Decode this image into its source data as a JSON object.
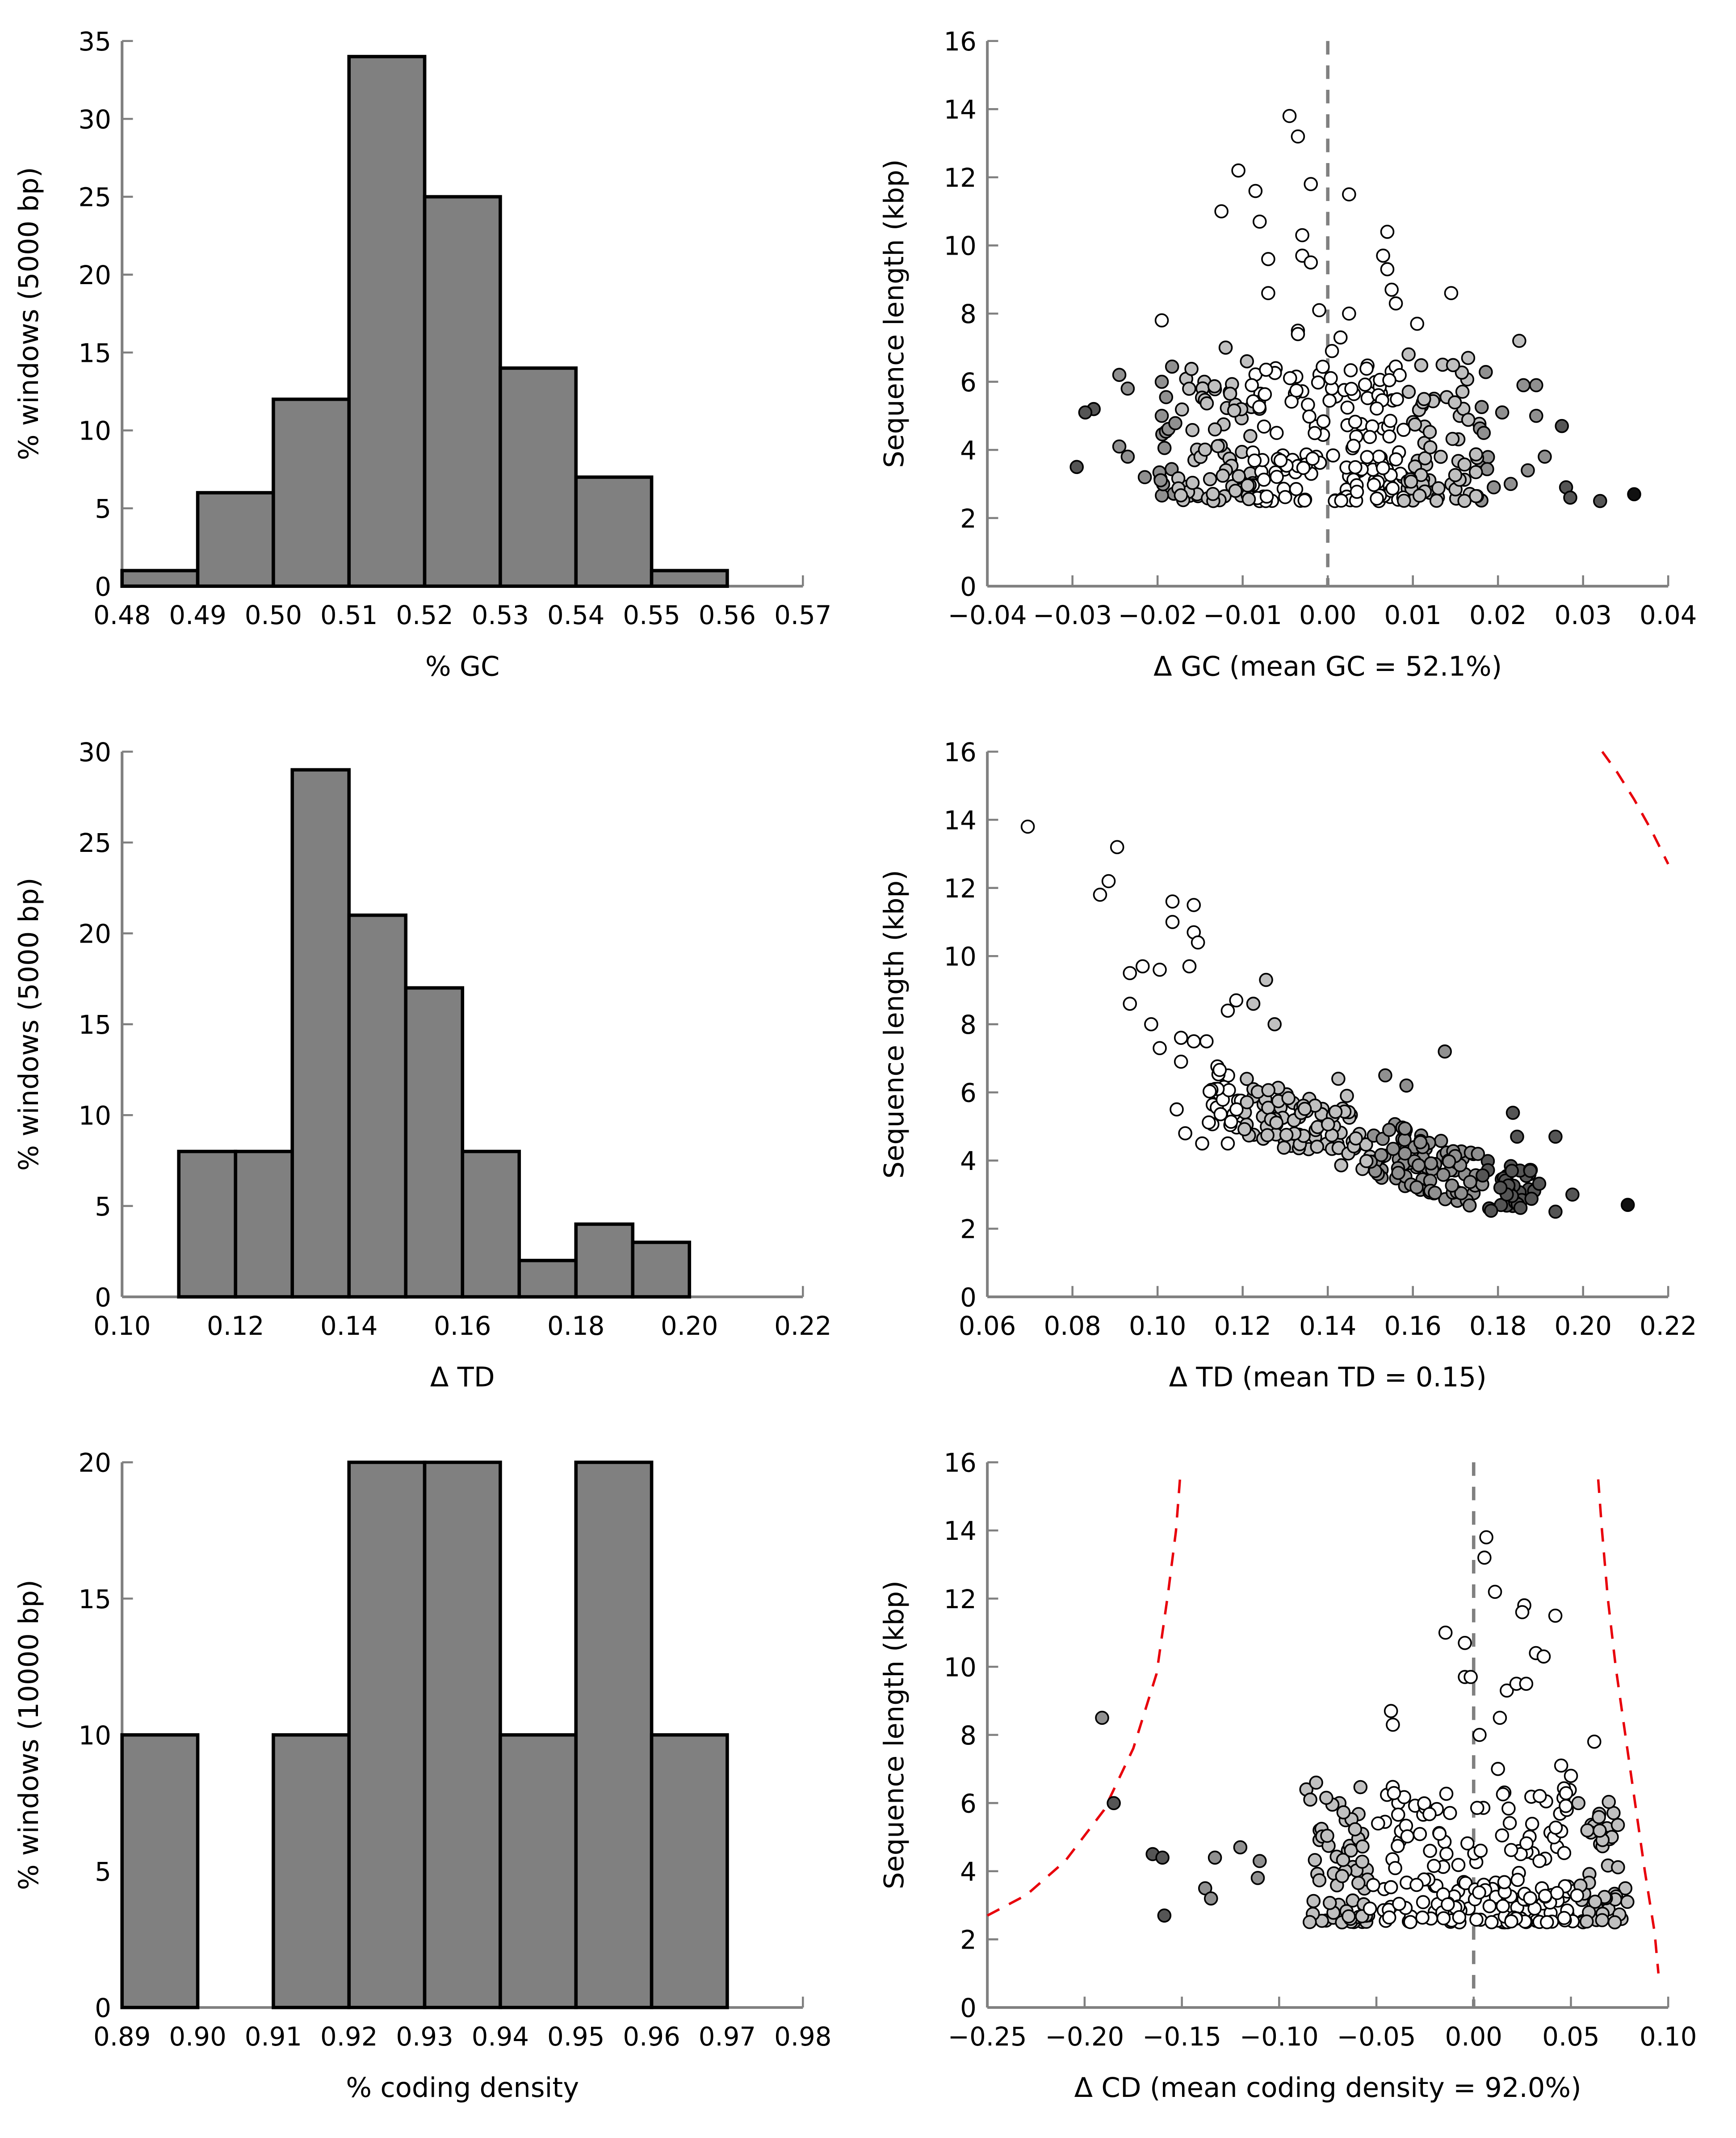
{
  "colors": {
    "bar_fill": "#808080",
    "bar_stroke": "#000000",
    "axis": "#808080",
    "refline": "#808080",
    "threshold": "#e8000b",
    "point_white": "#ffffff",
    "point_light": "#c0c0c0",
    "point_mid": "#909090",
    "point_dark": "#555555",
    "point_black": "#111111"
  },
  "chart_data": [
    {
      "id": "hist_gc",
      "type": "bar",
      "xlabel": "% GC",
      "ylabel": "% windows (5000 bp)",
      "xlim": [
        0.48,
        0.57
      ],
      "ylim": [
        0,
        35
      ],
      "xticks": [
        "0.48",
        "0.49",
        "0.50",
        "0.51",
        "0.52",
        "0.53",
        "0.54",
        "0.55",
        "0.56",
        "0.57"
      ],
      "yticks": [
        "0",
        "5",
        "10",
        "15",
        "20",
        "25",
        "30",
        "35"
      ],
      "bin_width": 0.01,
      "bins": [
        0.48,
        0.49,
        0.5,
        0.51,
        0.52,
        0.53,
        0.54,
        0.55
      ],
      "values": [
        1,
        6,
        12,
        34,
        25,
        14,
        7,
        1
      ]
    },
    {
      "id": "scatter_gc",
      "type": "scatter",
      "xlabel": "Δ GC (mean GC = 52.1%)",
      "ylabel": "Sequence length (kbp)",
      "xlim": [
        -0.04,
        0.04
      ],
      "ylim": [
        0,
        16
      ],
      "xticks": [
        "−0.04",
        "−0.03",
        "−0.02",
        "−0.01",
        "0.00",
        "0.01",
        "0.02",
        "0.03",
        "0.04"
      ],
      "yticks": [
        "0",
        "2",
        "4",
        "6",
        "8",
        "10",
        "12",
        "14",
        "16"
      ],
      "refline_x": 0.0,
      "shade_scale": 0.025,
      "points_labeled": [
        [
          -0.0045,
          13.8
        ],
        [
          -0.0035,
          13.2
        ],
        [
          -0.0105,
          12.2
        ],
        [
          -0.0085,
          11.6
        ],
        [
          -0.002,
          11.8
        ],
        [
          0.0025,
          11.5
        ],
        [
          -0.0125,
          11.0
        ],
        [
          -0.008,
          10.7
        ],
        [
          -0.003,
          10.3
        ],
        [
          0.007,
          10.4
        ],
        [
          -0.007,
          9.6
        ],
        [
          -0.003,
          9.7
        ],
        [
          -0.002,
          9.5
        ],
        [
          0.0065,
          9.7
        ],
        [
          0.007,
          9.3
        ],
        [
          -0.007,
          8.6
        ],
        [
          0.0075,
          8.7
        ],
        [
          0.008,
          8.3
        ],
        [
          0.0145,
          8.6
        ],
        [
          -0.0195,
          7.8
        ],
        [
          -0.001,
          8.1
        ],
        [
          0.0025,
          8.0
        ],
        [
          0.0105,
          7.7
        ],
        [
          -0.0035,
          7.5
        ],
        [
          0.0015,
          7.3
        ],
        [
          0.0225,
          7.2
        ],
        [
          -0.012,
          7.0
        ],
        [
          -0.0035,
          7.4
        ],
        [
          0.0005,
          6.9
        ],
        [
          -0.0095,
          6.6
        ],
        [
          0.0095,
          6.8
        ],
        [
          0.0165,
          6.7
        ],
        [
          0.0135,
          6.5
        ],
        [
          -0.0245,
          6.2
        ],
        [
          -0.0235,
          5.8
        ],
        [
          -0.0275,
          5.2
        ],
        [
          -0.0285,
          5.1
        ],
        [
          -0.0195,
          6.0
        ],
        [
          -0.0145,
          6.0
        ],
        [
          0.0075,
          6.3
        ],
        [
          0.023,
          5.9
        ],
        [
          0.0245,
          5.9
        ],
        [
          -0.0195,
          5.0
        ],
        [
          -0.0115,
          5.7
        ],
        [
          0.0125,
          5.5
        ],
        [
          0.0205,
          5.1
        ],
        [
          0.0245,
          5.0
        ],
        [
          0.0275,
          4.7
        ],
        [
          -0.0245,
          4.1
        ],
        [
          -0.0235,
          3.8
        ],
        [
          -0.0215,
          3.2
        ],
        [
          -0.0295,
          3.5
        ],
        [
          0.0255,
          3.8
        ],
        [
          0.028,
          2.9
        ],
        [
          0.0285,
          2.6
        ],
        [
          0.032,
          2.5
        ],
        [
          0.036,
          2.7
        ],
        [
          0.0195,
          2.9
        ],
        [
          0.0215,
          3.0
        ],
        [
          0.0235,
          3.4
        ]
      ],
      "points_bulk": {
        "count": 300,
        "x_range": [
          -0.02,
          0.019
        ],
        "y_range": [
          2.5,
          6.5
        ]
      }
    },
    {
      "id": "hist_td",
      "type": "bar",
      "xlabel": "Δ TD",
      "ylabel": "% windows (5000 bp)",
      "xlim": [
        0.1,
        0.22
      ],
      "ylim": [
        0,
        30
      ],
      "xticks": [
        "0.10",
        "0.12",
        "0.14",
        "0.16",
        "0.18",
        "0.20",
        "0.22"
      ],
      "yticks": [
        "0",
        "5",
        "10",
        "15",
        "20",
        "25",
        "30"
      ],
      "bin_width": 0.01,
      "bins": [
        0.11,
        0.12,
        0.13,
        0.14,
        0.15,
        0.16,
        0.17,
        0.18,
        0.19
      ],
      "values": [
        8,
        8,
        29,
        21,
        17,
        8,
        2,
        4,
        3
      ]
    },
    {
      "id": "scatter_td",
      "type": "scatter",
      "xlabel": "Δ TD (mean TD = 0.15)",
      "ylabel": "Sequence length (kbp)",
      "xlim": [
        0.06,
        0.22
      ],
      "ylim": [
        0,
        16
      ],
      "xticks": [
        "0.06",
        "0.08",
        "0.10",
        "0.12",
        "0.14",
        "0.16",
        "0.18",
        "0.20",
        "0.22"
      ],
      "yticks": [
        "0",
        "2",
        "4",
        "6",
        "8",
        "10",
        "12",
        "14",
        "16"
      ],
      "threshold_curve": [
        [
          0.2045,
          16.0
        ],
        [
          0.208,
          15.4
        ],
        [
          0.212,
          14.6
        ],
        [
          0.216,
          13.7
        ],
        [
          0.22,
          12.7
        ]
      ],
      "points_labeled": [
        [
          0.0695,
          13.8
        ],
        [
          0.0905,
          13.2
        ],
        [
          0.0885,
          12.2
        ],
        [
          0.0865,
          11.8
        ],
        [
          0.1035,
          11.6
        ],
        [
          0.1085,
          11.5
        ],
        [
          0.1035,
          11.0
        ],
        [
          0.1085,
          10.7
        ],
        [
          0.1095,
          10.4
        ],
        [
          0.1075,
          9.7
        ],
        [
          0.0935,
          9.5
        ],
        [
          0.0965,
          9.7
        ],
        [
          0.1005,
          9.6
        ],
        [
          0.0935,
          8.6
        ],
        [
          0.0985,
          8.0
        ],
        [
          0.1255,
          9.3
        ],
        [
          0.1185,
          8.7
        ],
        [
          0.1225,
          8.6
        ],
        [
          0.1165,
          8.4
        ],
        [
          0.1275,
          8.0
        ],
        [
          0.1055,
          7.6
        ],
        [
          0.1085,
          7.5
        ],
        [
          0.1115,
          7.5
        ],
        [
          0.1005,
          7.3
        ],
        [
          0.1675,
          7.2
        ],
        [
          0.1055,
          6.9
        ],
        [
          0.2105,
          2.7
        ],
        [
          0.1975,
          3.0
        ],
        [
          0.1935,
          2.5
        ],
        [
          0.1935,
          4.7
        ],
        [
          0.1845,
          4.7
        ],
        [
          0.1835,
          5.4
        ],
        [
          0.1535,
          6.5
        ],
        [
          0.1585,
          6.2
        ],
        [
          0.1445,
          5.9
        ],
        [
          0.1425,
          6.4
        ],
        [
          0.1105,
          4.5
        ],
        [
          0.1065,
          4.8
        ],
        [
          0.1165,
          4.5
        ],
        [
          0.1045,
          5.5
        ]
      ],
      "points_bulk": {
        "count": 240,
        "x_range": [
          0.112,
          0.19
        ],
        "trend": "decreasing",
        "y_range": [
          2.5,
          6.0
        ]
      }
    },
    {
      "id": "hist_cd",
      "type": "bar",
      "xlabel": "% coding density",
      "ylabel": "% windows (10000 bp)",
      "xlim": [
        0.89,
        0.98
      ],
      "ylim": [
        0,
        20
      ],
      "xticks": [
        "0.89",
        "0.90",
        "0.91",
        "0.92",
        "0.93",
        "0.94",
        "0.95",
        "0.96",
        "0.97",
        "0.98"
      ],
      "yticks": [
        "0",
        "5",
        "10",
        "15",
        "20"
      ],
      "bin_width": 0.01,
      "bins": [
        0.89,
        0.91,
        0.92,
        0.93,
        0.94,
        0.95,
        0.96
      ],
      "values": [
        10,
        10,
        20,
        20,
        10,
        20,
        10
      ]
    },
    {
      "id": "scatter_cd",
      "type": "scatter",
      "xlabel": "Δ CD (mean coding density = 92.0%)",
      "ylabel": "Sequence length (kbp)",
      "xlim": [
        -0.25,
        0.1
      ],
      "ylim": [
        0,
        16
      ],
      "xticks": [
        "−0.25",
        "−0.20",
        "−0.15",
        "−0.10",
        "−0.05",
        "0.00",
        "0.05",
        "0.10"
      ],
      "yticks": [
        "0",
        "2",
        "4",
        "6",
        "8",
        "10",
        "12",
        "14",
        "16"
      ],
      "refline_x": 0.0,
      "threshold_left": [
        [
          -0.25,
          2.7
        ],
        [
          -0.23,
          3.3
        ],
        [
          -0.21,
          4.3
        ],
        [
          -0.19,
          5.8
        ],
        [
          -0.175,
          7.6
        ],
        [
          -0.163,
          9.8
        ],
        [
          -0.157,
          12.2
        ],
        [
          -0.153,
          14.0
        ],
        [
          -0.151,
          15.5
        ]
      ],
      "threshold_right": [
        [
          0.064,
          15.5
        ],
        [
          0.066,
          14.0
        ],
        [
          0.069,
          12.0
        ],
        [
          0.073,
          10.0
        ],
        [
          0.078,
          8.0
        ],
        [
          0.083,
          6.0
        ],
        [
          0.088,
          4.0
        ],
        [
          0.093,
          2.2
        ],
        [
          0.095,
          1.0
        ]
      ],
      "shade_scale": 0.15,
      "points_labeled": [
        [
          0.0065,
          13.8
        ],
        [
          0.0055,
          13.2
        ],
        [
          0.011,
          12.2
        ],
        [
          0.026,
          11.8
        ],
        [
          0.025,
          11.6
        ],
        [
          0.042,
          11.5
        ],
        [
          -0.0145,
          11.0
        ],
        [
          -0.0045,
          10.7
        ],
        [
          0.032,
          10.4
        ],
        [
          0.036,
          10.3
        ],
        [
          -0.0045,
          9.7
        ],
        [
          -0.0015,
          9.7
        ],
        [
          0.017,
          9.3
        ],
        [
          0.022,
          9.5
        ],
        [
          0.027,
          9.5
        ],
        [
          0.0135,
          8.5
        ],
        [
          -0.0425,
          8.7
        ],
        [
          -0.0415,
          8.3
        ],
        [
          -0.191,
          8.5
        ],
        [
          -0.185,
          6.0
        ],
        [
          -0.165,
          4.5
        ],
        [
          -0.16,
          4.4
        ],
        [
          -0.159,
          2.7
        ],
        [
          -0.138,
          3.5
        ],
        [
          -0.135,
          3.2
        ],
        [
          -0.133,
          4.4
        ],
        [
          -0.12,
          4.7
        ],
        [
          -0.11,
          4.3
        ],
        [
          -0.111,
          3.8
        ],
        [
          -0.086,
          6.4
        ],
        [
          -0.084,
          6.1
        ],
        [
          -0.081,
          6.6
        ],
        [
          -0.069,
          6.0
        ],
        [
          0.003,
          8.0
        ],
        [
          0.0125,
          7.0
        ],
        [
          0.062,
          7.8
        ],
        [
          0.045,
          7.1
        ],
        [
          0.05,
          6.8
        ],
        [
          0.065,
          4.8
        ],
        [
          0.078,
          3.5
        ],
        [
          0.076,
          2.6
        ],
        [
          0.079,
          3.1
        ]
      ],
      "points_bulk": {
        "count": 280,
        "x_range": [
          -0.085,
          0.075
        ],
        "y_range": [
          2.5,
          6.5
        ]
      }
    }
  ]
}
